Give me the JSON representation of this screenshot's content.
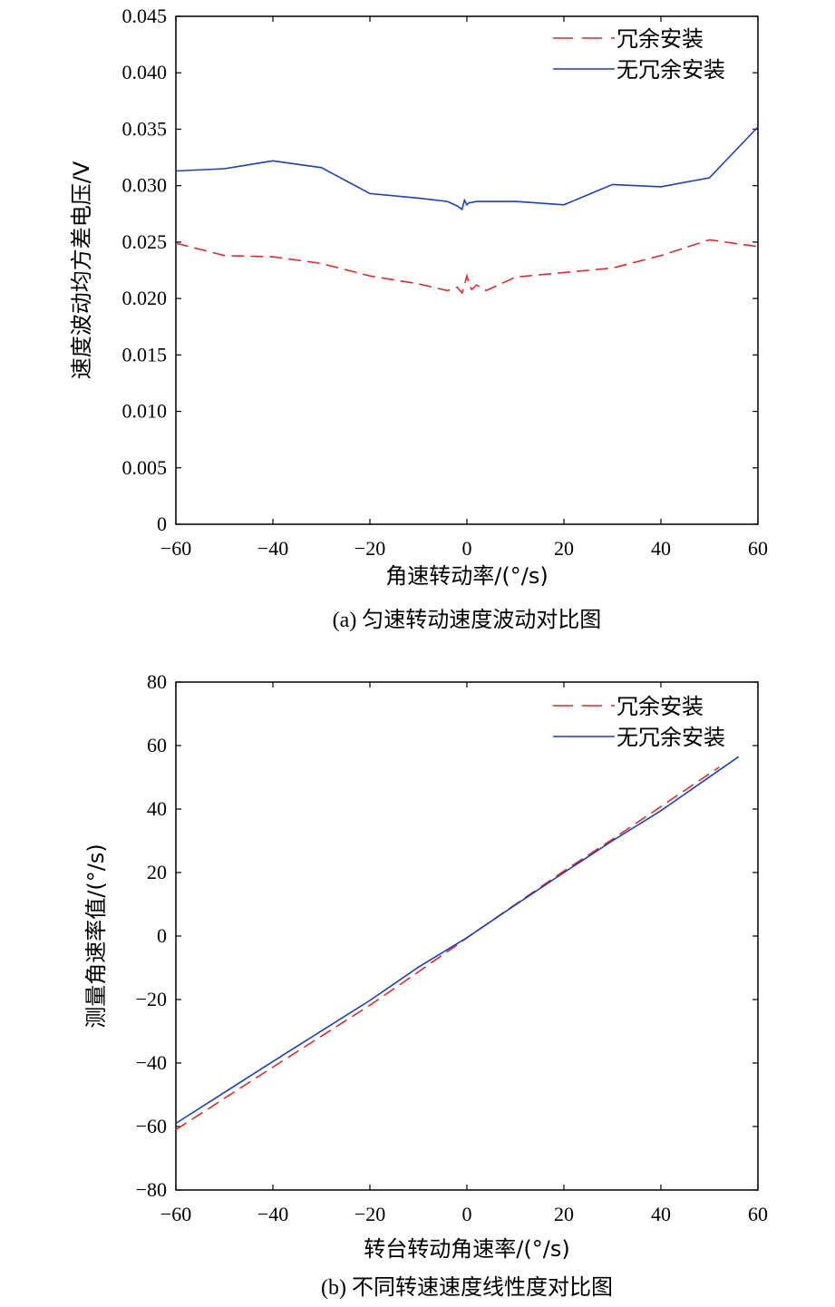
{
  "chart_data": [
    {
      "type": "line",
      "caption": "(a) 匀速转动速度波动对比图",
      "xlabel": "角速转动率/(°/s)",
      "ylabel": "速度波动均方差电压/V",
      "xlim": [
        -60,
        60
      ],
      "ylim": [
        0,
        0.045
      ],
      "xticks": [
        "−60",
        "−40",
        "−20",
        "0",
        "20",
        "40",
        "60"
      ],
      "yticks": [
        "0",
        "0.005",
        "0.010",
        "0.015",
        "0.020",
        "0.025",
        "0.030",
        "0.035",
        "0.040",
        "0.045"
      ],
      "xtick_values": [
        -60,
        -40,
        -20,
        0,
        20,
        40,
        60
      ],
      "ytick_values": [
        0,
        0.005,
        0.01,
        0.015,
        0.02,
        0.025,
        0.03,
        0.035,
        0.04,
        0.045
      ],
      "legend_position": "top-right",
      "series": [
        {
          "name": "冗余安装",
          "color": "#e8272a",
          "dash": "dashed",
          "x": [
            -60,
            -50,
            -40,
            -30,
            -20,
            -10,
            -4,
            -2,
            -1,
            -0.5,
            0,
            0.5,
            1,
            2,
            4,
            10,
            20,
            30,
            40,
            50,
            60
          ],
          "y": [
            0.0249,
            0.0238,
            0.0237,
            0.0231,
            0.022,
            0.0213,
            0.0207,
            0.021,
            0.0205,
            0.0212,
            0.022,
            0.0212,
            0.0208,
            0.0212,
            0.0207,
            0.0219,
            0.0223,
            0.0227,
            0.0238,
            0.0252,
            0.0246
          ]
        },
        {
          "name": "无冗余安装",
          "color": "#1a3fc4",
          "dash": "solid",
          "x": [
            -60,
            -50,
            -40,
            -30,
            -20,
            -10,
            -4,
            -2,
            -1,
            -0.5,
            0,
            0.5,
            1,
            2,
            10,
            20,
            30,
            40,
            50,
            60
          ],
          "y": [
            0.0313,
            0.0315,
            0.0322,
            0.0316,
            0.0293,
            0.0289,
            0.0286,
            0.0282,
            0.0279,
            0.0287,
            0.0283,
            0.0285,
            0.0285,
            0.0286,
            0.0286,
            0.0283,
            0.0301,
            0.0299,
            0.0307,
            0.0352
          ]
        }
      ]
    },
    {
      "type": "line",
      "caption": "(b) 不同转速速度线性度对比图",
      "xlabel": "转台转动角速率/(°/s)",
      "ylabel": "测量角速率值/(°/s)",
      "xlim": [
        -60,
        60
      ],
      "ylim": [
        -80,
        80
      ],
      "xticks": [
        "−60",
        "−40",
        "−20",
        "0",
        "20",
        "40",
        "60"
      ],
      "yticks": [
        "−80",
        "−60",
        "−40",
        "−20",
        "0",
        "20",
        "40",
        "60",
        "80"
      ],
      "xtick_values": [
        -60,
        -40,
        -20,
        0,
        20,
        40,
        60
      ],
      "ytick_values": [
        -80,
        -60,
        -40,
        -20,
        0,
        20,
        40,
        60,
        80
      ],
      "legend_position": "top-right",
      "series": [
        {
          "name": "冗余安装",
          "color": "#e8272a",
          "dash": "dashed",
          "x": [
            -60,
            -40,
            -20,
            -10,
            0,
            10,
            20,
            30,
            40,
            52
          ],
          "y": [
            -61,
            -41.3,
            -21.8,
            -11.3,
            -0.6,
            10,
            20.5,
            30.5,
            40.8,
            53.2
          ]
        },
        {
          "name": "无冗余安装",
          "color": "#1a3fc4",
          "dash": "solid",
          "x": [
            -60,
            -40,
            -20,
            -10,
            0,
            10,
            20,
            30,
            40,
            56
          ],
          "y": [
            -59,
            -39.5,
            -20.3,
            -9.8,
            -0.5,
            9.8,
            20,
            30,
            39.5,
            56.5
          ]
        }
      ]
    }
  ]
}
